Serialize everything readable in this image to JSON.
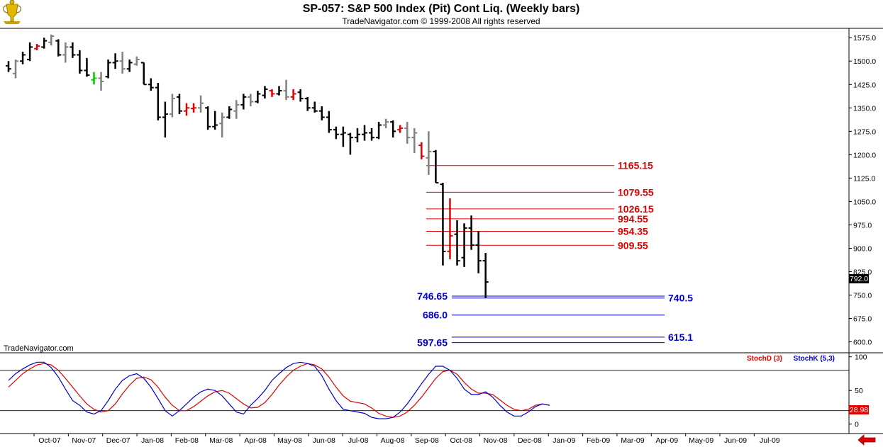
{
  "header": {
    "title": "SP-057:  S&P 500 Index (Pit) Cont Liq.  (Weekly bars)",
    "subtitle": "TradeNavigator.com © 1999-2008 All rights reserved"
  },
  "watermark": "TradeNavigator.com",
  "last_price": "792.0",
  "stoch_last": "28.98",
  "colors": {
    "red": "#e00000",
    "blue": "#0000cc",
    "bar": "#000000",
    "gray_bar": "#808080",
    "green": "#00cc00"
  },
  "icons": {
    "logo": "trophy-icon",
    "scroll": "left-arrow-icon"
  },
  "chart_data": [
    {
      "type": "ohlc",
      "title": "SP-057:  S&P 500 Index (Pit) Cont Liq.  (Weekly bars)",
      "ylim": [
        565,
        1605
      ],
      "y_ticks": [
        "1575.0",
        "1500.0",
        "1425.0",
        "1350.0",
        "1275.0",
        "1200.0",
        "1125.0",
        "1050.0",
        "975.0",
        "900.0",
        "825.0",
        "750.0",
        "675.0",
        "600.0"
      ],
      "x_labels": [
        "Oct-07",
        "Nov-07",
        "Dec-07",
        "Jan-08",
        "Feb-08",
        "Mar-08",
        "Apr-08",
        "May-08",
        "Jun-08",
        "Jul-08",
        "Aug-08",
        "Sep-08",
        "Oct-08",
        "Nov-08",
        "Dec-08",
        "Jan-09",
        "Feb-09",
        "Mar-09",
        "Apr-09",
        "May-09",
        "Jun-09",
        "Jul-09"
      ],
      "bars": [
        {
          "h": 1500,
          "l": 1465,
          "o": 1485,
          "c": 1475,
          "color": "black"
        },
        {
          "h": 1505,
          "l": 1445,
          "o": 1460,
          "c": 1500,
          "color": "gray"
        },
        {
          "h": 1530,
          "l": 1490,
          "o": 1500,
          "c": 1520,
          "color": "black"
        },
        {
          "h": 1560,
          "l": 1500,
          "o": 1505,
          "c": 1545,
          "color": "black"
        },
        {
          "h": 1555,
          "l": 1535,
          "o": 1540,
          "c": 1548,
          "color": "red"
        },
        {
          "h": 1575,
          "l": 1540,
          "o": 1545,
          "c": 1565,
          "color": "black"
        },
        {
          "h": 1585,
          "l": 1550,
          "o": 1560,
          "c": 1580,
          "color": "gray"
        },
        {
          "h": 1570,
          "l": 1515,
          "o": 1565,
          "c": 1520,
          "color": "black"
        },
        {
          "h": 1560,
          "l": 1495,
          "o": 1520,
          "c": 1545,
          "color": "gray"
        },
        {
          "h": 1560,
          "l": 1510,
          "o": 1545,
          "c": 1520,
          "color": "black"
        },
        {
          "h": 1535,
          "l": 1460,
          "o": 1520,
          "c": 1470,
          "color": "black"
        },
        {
          "h": 1510,
          "l": 1450,
          "o": 1470,
          "c": 1455,
          "color": "black"
        },
        {
          "h": 1465,
          "l": 1425,
          "o": 1440,
          "c": 1445,
          "color": "green"
        },
        {
          "h": 1465,
          "l": 1405,
          "o": 1445,
          "c": 1435,
          "color": "gray"
        },
        {
          "h": 1505,
          "l": 1445,
          "o": 1450,
          "c": 1495,
          "color": "black"
        },
        {
          "h": 1525,
          "l": 1475,
          "o": 1495,
          "c": 1500,
          "color": "black"
        },
        {
          "h": 1530,
          "l": 1460,
          "o": 1500,
          "c": 1475,
          "color": "gray"
        },
        {
          "h": 1505,
          "l": 1465,
          "o": 1475,
          "c": 1495,
          "color": "black"
        },
        {
          "h": 1515,
          "l": 1485,
          "o": 1490,
          "c": 1505,
          "color": "gray"
        },
        {
          "h": 1495,
          "l": 1425,
          "o": 1495,
          "c": 1425,
          "color": "black"
        },
        {
          "h": 1445,
          "l": 1405,
          "o": 1425,
          "c": 1415,
          "color": "black"
        },
        {
          "h": 1430,
          "l": 1310,
          "o": 1415,
          "c": 1320,
          "color": "black"
        },
        {
          "h": 1370,
          "l": 1255,
          "o": 1320,
          "c": 1330,
          "color": "black"
        },
        {
          "h": 1395,
          "l": 1320,
          "o": 1330,
          "c": 1380,
          "color": "gray"
        },
        {
          "h": 1395,
          "l": 1330,
          "o": 1385,
          "c": 1340,
          "color": "black"
        },
        {
          "h": 1365,
          "l": 1325,
          "o": 1340,
          "c": 1350,
          "color": "red"
        },
        {
          "h": 1365,
          "l": 1335,
          "o": 1348,
          "c": 1350,
          "color": "red"
        },
        {
          "h": 1390,
          "l": 1335,
          "o": 1350,
          "c": 1365,
          "color": "gray"
        },
        {
          "h": 1355,
          "l": 1280,
          "o": 1350,
          "c": 1290,
          "color": "black"
        },
        {
          "h": 1340,
          "l": 1280,
          "o": 1290,
          "c": 1295,
          "color": "black"
        },
        {
          "h": 1335,
          "l": 1255,
          "o": 1300,
          "c": 1320,
          "color": "gray"
        },
        {
          "h": 1355,
          "l": 1315,
          "o": 1320,
          "c": 1345,
          "color": "black"
        },
        {
          "h": 1375,
          "l": 1315,
          "o": 1340,
          "c": 1360,
          "color": "gray"
        },
        {
          "h": 1395,
          "l": 1345,
          "o": 1360,
          "c": 1385,
          "color": "black"
        },
        {
          "h": 1395,
          "l": 1355,
          "o": 1385,
          "c": 1370,
          "color": "gray"
        },
        {
          "h": 1405,
          "l": 1365,
          "o": 1370,
          "c": 1395,
          "color": "black"
        },
        {
          "h": 1420,
          "l": 1380,
          "o": 1390,
          "c": 1410,
          "color": "black"
        },
        {
          "h": 1410,
          "l": 1385,
          "o": 1405,
          "c": 1395,
          "color": "red"
        },
        {
          "h": 1420,
          "l": 1390,
          "o": 1395,
          "c": 1405,
          "color": "black"
        },
        {
          "h": 1440,
          "l": 1375,
          "o": 1405,
          "c": 1385,
          "color": "gray"
        },
        {
          "h": 1410,
          "l": 1375,
          "o": 1385,
          "c": 1395,
          "color": "red"
        },
        {
          "h": 1410,
          "l": 1370,
          "o": 1400,
          "c": 1380,
          "color": "black"
        },
        {
          "h": 1385,
          "l": 1340,
          "o": 1380,
          "c": 1350,
          "color": "black"
        },
        {
          "h": 1370,
          "l": 1335,
          "o": 1350,
          "c": 1340,
          "color": "black"
        },
        {
          "h": 1355,
          "l": 1310,
          "o": 1340,
          "c": 1320,
          "color": "black"
        },
        {
          "h": 1340,
          "l": 1270,
          "o": 1320,
          "c": 1280,
          "color": "black"
        },
        {
          "h": 1290,
          "l": 1250,
          "o": 1280,
          "c": 1265,
          "color": "black"
        },
        {
          "h": 1290,
          "l": 1225,
          "o": 1265,
          "c": 1270,
          "color": "black"
        },
        {
          "h": 1270,
          "l": 1200,
          "o": 1265,
          "c": 1255,
          "color": "black"
        },
        {
          "h": 1285,
          "l": 1240,
          "o": 1255,
          "c": 1265,
          "color": "black"
        },
        {
          "h": 1295,
          "l": 1245,
          "o": 1265,
          "c": 1270,
          "color": "black"
        },
        {
          "h": 1285,
          "l": 1245,
          "o": 1270,
          "c": 1255,
          "color": "black"
        },
        {
          "h": 1305,
          "l": 1250,
          "o": 1255,
          "c": 1295,
          "color": "black"
        },
        {
          "h": 1315,
          "l": 1285,
          "o": 1295,
          "c": 1305,
          "color": "gray"
        },
        {
          "h": 1310,
          "l": 1255,
          "o": 1305,
          "c": 1275,
          "color": "black"
        },
        {
          "h": 1295,
          "l": 1270,
          "o": 1280,
          "c": 1285,
          "color": "red"
        },
        {
          "h": 1305,
          "l": 1235,
          "o": 1285,
          "c": 1255,
          "color": "gray"
        },
        {
          "h": 1285,
          "l": 1205,
          "o": 1255,
          "c": 1270,
          "color": "gray"
        },
        {
          "h": 1240,
          "l": 1185,
          "o": 1230,
          "c": 1195,
          "color": "red"
        },
        {
          "h": 1275,
          "l": 1135,
          "o": 1190,
          "c": 1210,
          "color": "gray"
        },
        {
          "h": 1215,
          "l": 1110,
          "o": 1210,
          "c": 1110,
          "color": "black"
        },
        {
          "h": 1110,
          "l": 845,
          "o": 1105,
          "c": 890,
          "color": "black"
        },
        {
          "h": 1060,
          "l": 865,
          "o": 890,
          "c": 940,
          "color": "red"
        },
        {
          "h": 990,
          "l": 845,
          "o": 945,
          "c": 860,
          "color": "black"
        },
        {
          "h": 980,
          "l": 840,
          "o": 870,
          "c": 965,
          "color": "black"
        },
        {
          "h": 1005,
          "l": 895,
          "o": 965,
          "c": 910,
          "color": "black"
        },
        {
          "h": 955,
          "l": 820,
          "o": 910,
          "c": 860,
          "color": "black"
        },
        {
          "h": 885,
          "l": 740,
          "o": 860,
          "c": 792,
          "color": "black"
        }
      ],
      "levels": [
        {
          "value": "1165.15",
          "y": 1165.15,
          "color": "red",
          "side": "right"
        },
        {
          "value": "1079.55",
          "y": 1079.55,
          "color": "red",
          "side": "right"
        },
        {
          "value": "1026.15",
          "y": 1026.15,
          "color": "red",
          "side": "right"
        },
        {
          "value": "994.55",
          "y": 994.55,
          "color": "red",
          "side": "right"
        },
        {
          "value": "954.35",
          "y": 954.35,
          "color": "red",
          "side": "right"
        },
        {
          "value": "909.55",
          "y": 909.55,
          "color": "red",
          "side": "right"
        },
        {
          "value": "746.65",
          "y": 746.65,
          "color": "blue",
          "side": "left"
        },
        {
          "value": "740.5",
          "y": 740.5,
          "color": "blue",
          "side": "right"
        },
        {
          "value": "686.0",
          "y": 686.0,
          "color": "blue",
          "side": "left"
        },
        {
          "value": "615.1",
          "y": 615.1,
          "color": "blue",
          "side": "right"
        },
        {
          "value": "597.65",
          "y": 597.65,
          "color": "blue",
          "side": "left"
        }
      ]
    },
    {
      "type": "line",
      "ylim": [
        -14,
        106
      ],
      "y_ticks": [
        "100",
        "50",
        "0"
      ],
      "ref_lines": [
        80,
        20
      ],
      "series": [
        {
          "name": "StochD (3)",
          "color": "red",
          "values": [
            55,
            65,
            75,
            82,
            88,
            90,
            88,
            80,
            68,
            55,
            42,
            30,
            22,
            18,
            20,
            30,
            45,
            58,
            68,
            70,
            66,
            55,
            40,
            28,
            20,
            20,
            26,
            34,
            42,
            48,
            50,
            46,
            38,
            30,
            24,
            25,
            32,
            44,
            58,
            70,
            80,
            86,
            90,
            88,
            82,
            70,
            55,
            42,
            34,
            32,
            30,
            24,
            16,
            12,
            10,
            12,
            18,
            28,
            40,
            54,
            68,
            78,
            80,
            74,
            62,
            52,
            46,
            46,
            44,
            36,
            28,
            22,
            20,
            22,
            28,
            30,
            28
          ]
        },
        {
          "name": "StochK (5,3)",
          "color": "blue",
          "values": [
            65,
            75,
            82,
            88,
            92,
            92,
            84,
            70,
            52,
            35,
            28,
            18,
            15,
            20,
            35,
            52,
            65,
            72,
            75,
            68,
            55,
            38,
            20,
            12,
            20,
            30,
            40,
            48,
            52,
            50,
            42,
            30,
            18,
            15,
            28,
            38,
            50,
            65,
            75,
            84,
            90,
            92,
            90,
            86,
            72,
            52,
            35,
            22,
            20,
            18,
            16,
            10,
            8,
            8,
            10,
            18,
            30,
            45,
            60,
            74,
            86,
            86,
            80,
            68,
            52,
            44,
            44,
            48,
            40,
            28,
            18,
            12,
            12,
            18,
            26,
            30,
            28
          ]
        }
      ]
    }
  ]
}
